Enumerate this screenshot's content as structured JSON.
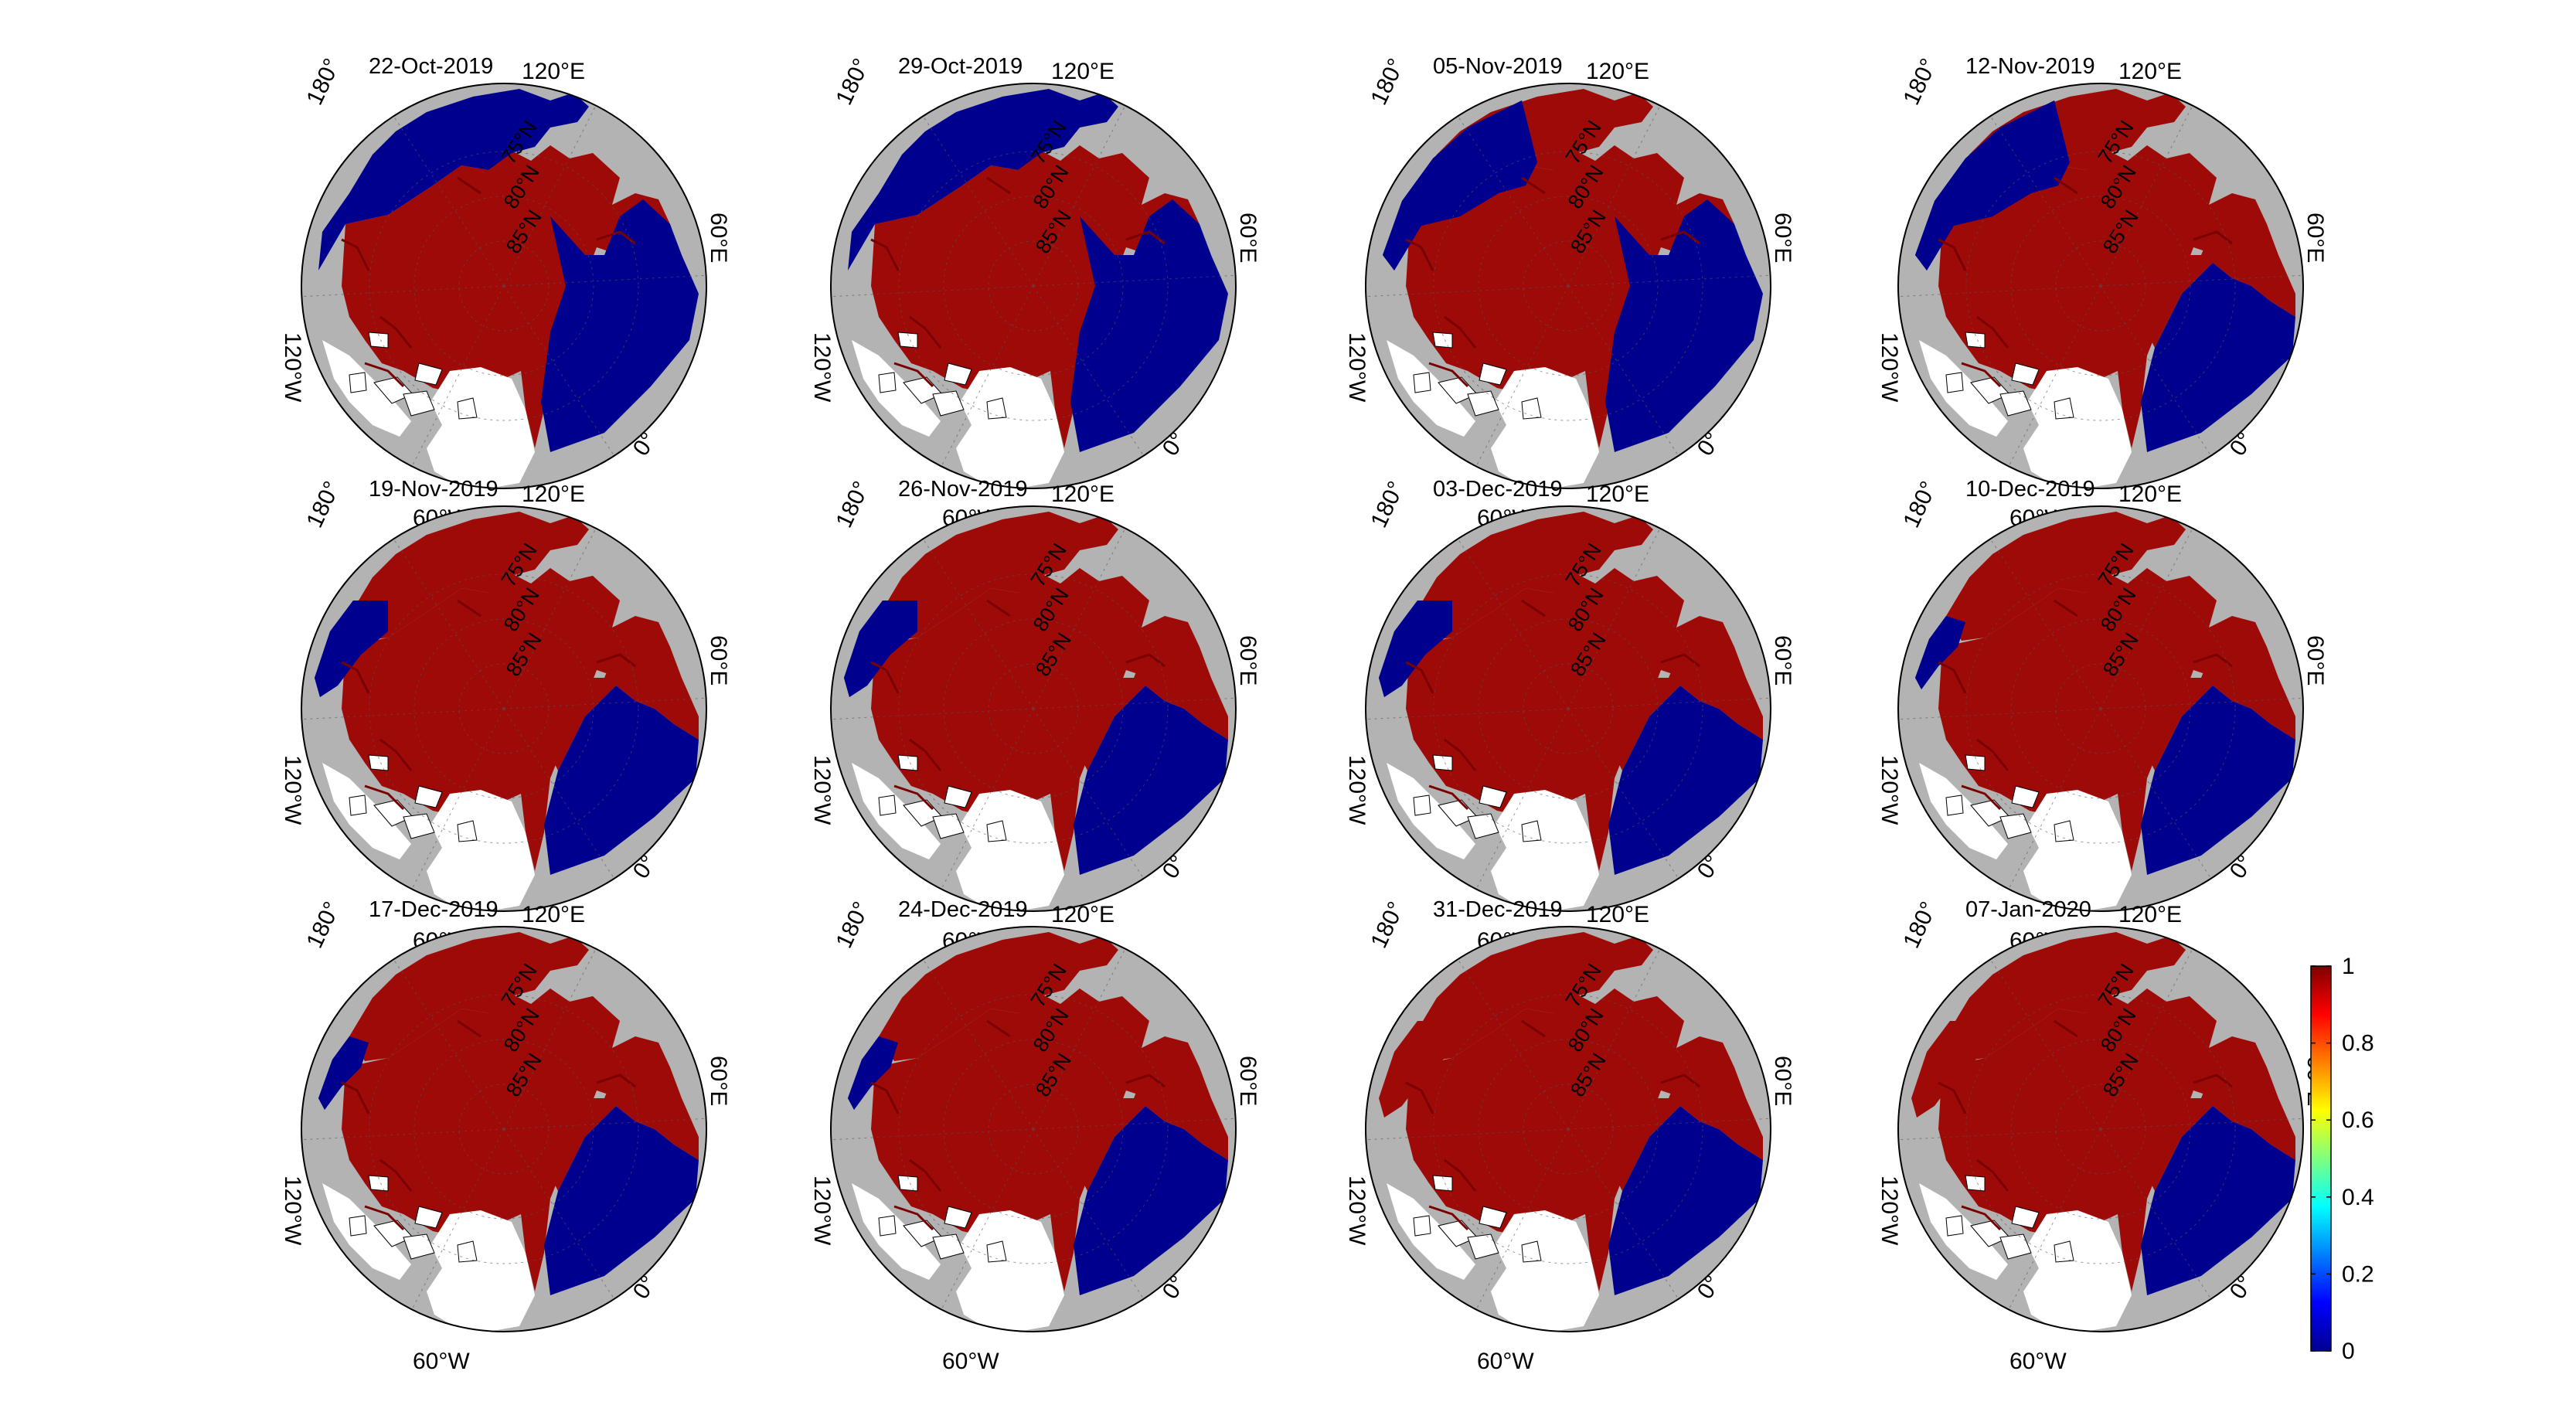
{
  "figure": {
    "panels": [
      {
        "title": "22-Oct-2019",
        "pacific_open": "large",
        "atlantic_open": "large"
      },
      {
        "title": "29-Oct-2019",
        "pacific_open": "large",
        "atlantic_open": "large"
      },
      {
        "title": "05-Nov-2019",
        "pacific_open": "medium",
        "atlantic_open": "large"
      },
      {
        "title": "12-Nov-2019",
        "pacific_open": "medium",
        "atlantic_open": "medium"
      },
      {
        "title": "19-Nov-2019",
        "pacific_open": "small",
        "atlantic_open": "medium"
      },
      {
        "title": "26-Nov-2019",
        "pacific_open": "small",
        "atlantic_open": "medium"
      },
      {
        "title": "03-Dec-2019",
        "pacific_open": "small",
        "atlantic_open": "medium"
      },
      {
        "title": "10-Dec-2019",
        "pacific_open": "tiny",
        "atlantic_open": "medium"
      },
      {
        "title": "17-Dec-2019",
        "pacific_open": "tiny",
        "atlantic_open": "medium"
      },
      {
        "title": "24-Dec-2019",
        "pacific_open": "tiny",
        "atlantic_open": "medium"
      },
      {
        "title": "31-Dec-2019",
        "pacific_open": "none",
        "atlantic_open": "medium"
      },
      {
        "title": "07-Jan-2020",
        "pacific_open": "none",
        "atlantic_open": "medium"
      }
    ],
    "longitude_labels": {
      "lon180": "180°",
      "lon120e": "120°E",
      "lon60e": "60°E",
      "lon0": "0°",
      "lon60w": "60°W",
      "lon120w": "120°W"
    },
    "latitude_labels": [
      "75°N",
      "80°N",
      "85°N"
    ],
    "colorbar": {
      "min": 0,
      "max": 1,
      "ticks": [
        "0",
        "0.2",
        "0.4",
        "0.6",
        "0.8",
        "1"
      ],
      "colormap": "jet"
    },
    "colors": {
      "land": "#b3b3b3",
      "ice": "#9e0a08",
      "ice_dark": "#7a0000",
      "open_water": "#00008f",
      "greenland": "#ffffff"
    }
  }
}
